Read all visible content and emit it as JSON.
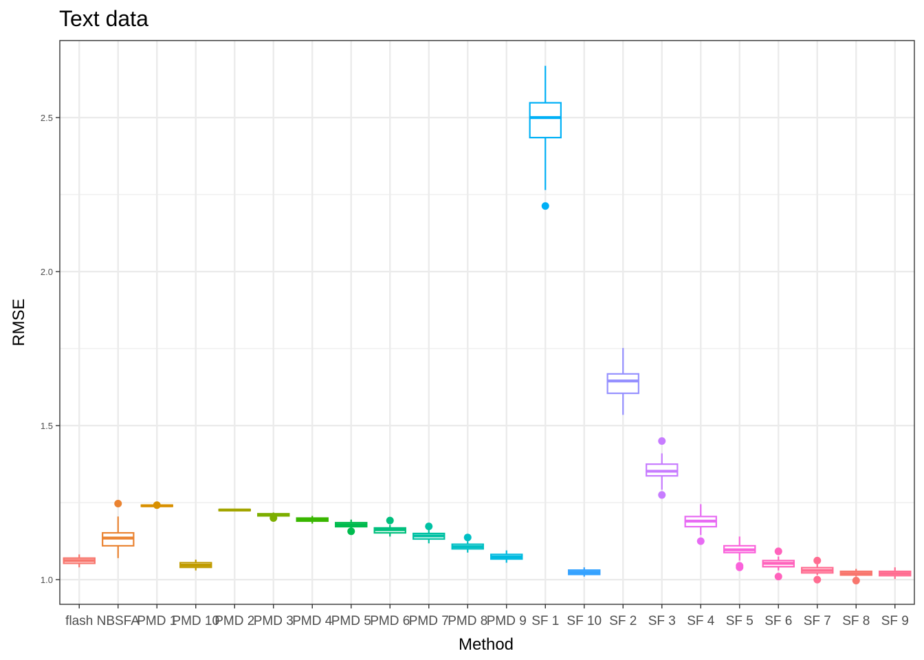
{
  "chart_data": {
    "type": "boxplot",
    "title": "Text data",
    "xlabel": "Method",
    "ylabel": "RMSE",
    "ylim": [
      0.92,
      2.75
    ],
    "yticks": [
      1.0,
      1.5,
      2.0,
      2.5
    ],
    "ytick_labels": [
      "1.0",
      "1.5",
      "2.0",
      "2.5"
    ],
    "grid": true,
    "legend": "none",
    "categories": [
      "flash",
      "NBSFA",
      "PMD 1",
      "PMD 10",
      "PMD 2",
      "PMD 3",
      "PMD 4",
      "PMD 5",
      "PMD 6",
      "PMD 7",
      "PMD 8",
      "PMD 9",
      "SF 1",
      "SF 10",
      "SF 2",
      "SF 3",
      "SF 4",
      "SF 5",
      "SF 6",
      "SF 7",
      "SF 8",
      "SF 9"
    ],
    "colors": [
      "#F8766D",
      "#EA8331",
      "#D89000",
      "#C09B00",
      "#A3A500",
      "#7CAE00",
      "#39B600",
      "#00BB4E",
      "#00BF7D",
      "#00C1A3",
      "#00BFC4",
      "#00BAE0",
      "#00B0F6",
      "#35A2FF",
      "#9590FF",
      "#C77CFF",
      "#E76BF3",
      "#FA62DB",
      "#FF62BC",
      "#FF6C91",
      "#F8766D",
      "#FF6C91"
    ],
    "boxes": [
      {
        "min": 1.04,
        "q1": 1.053,
        "median": 1.062,
        "q3": 1.07,
        "max": 1.082,
        "outliers": []
      },
      {
        "min": 1.07,
        "q1": 1.11,
        "median": 1.135,
        "q3": 1.152,
        "max": 1.205,
        "outliers": [
          1.247
        ]
      },
      {
        "min": 1.236,
        "q1": 1.238,
        "median": 1.24,
        "q3": 1.242,
        "max": 1.244,
        "outliers": [
          1.242
        ]
      },
      {
        "min": 1.03,
        "q1": 1.04,
        "median": 1.047,
        "q3": 1.055,
        "max": 1.065,
        "outliers": []
      },
      {
        "min": 1.222,
        "q1": 1.224,
        "median": 1.226,
        "q3": 1.228,
        "max": 1.23,
        "outliers": []
      },
      {
        "min": 1.205,
        "q1": 1.207,
        "median": 1.21,
        "q3": 1.214,
        "max": 1.218,
        "outliers": [
          1.2
        ]
      },
      {
        "min": 1.182,
        "q1": 1.19,
        "median": 1.195,
        "q3": 1.2,
        "max": 1.207,
        "outliers": []
      },
      {
        "min": 1.165,
        "q1": 1.172,
        "median": 1.178,
        "q3": 1.185,
        "max": 1.195,
        "outliers": [
          1.157
        ]
      },
      {
        "min": 1.14,
        "q1": 1.152,
        "median": 1.162,
        "q3": 1.168,
        "max": 1.178,
        "outliers": [
          1.192
        ]
      },
      {
        "min": 1.118,
        "q1": 1.132,
        "median": 1.142,
        "q3": 1.15,
        "max": 1.162,
        "outliers": [
          1.173
        ]
      },
      {
        "min": 1.088,
        "q1": 1.1,
        "median": 1.107,
        "q3": 1.115,
        "max": 1.125,
        "outliers": [
          1.137
        ]
      },
      {
        "min": 1.055,
        "q1": 1.067,
        "median": 1.074,
        "q3": 1.082,
        "max": 1.095,
        "outliers": []
      },
      {
        "min": 2.265,
        "q1": 2.435,
        "median": 2.5,
        "q3": 2.548,
        "max": 2.668,
        "outliers": [
          2.213
        ]
      },
      {
        "min": 1.01,
        "q1": 1.017,
        "median": 1.024,
        "q3": 1.031,
        "max": 1.04,
        "outliers": []
      },
      {
        "min": 1.535,
        "q1": 1.605,
        "median": 1.645,
        "q3": 1.668,
        "max": 1.752,
        "outliers": []
      },
      {
        "min": 1.292,
        "q1": 1.337,
        "median": 1.352,
        "q3": 1.375,
        "max": 1.41,
        "outliers": [
          1.45,
          1.275
        ]
      },
      {
        "min": 1.145,
        "q1": 1.172,
        "median": 1.19,
        "q3": 1.205,
        "max": 1.245,
        "outliers": [
          1.125
        ]
      },
      {
        "min": 1.062,
        "q1": 1.088,
        "median": 1.097,
        "q3": 1.11,
        "max": 1.14,
        "outliers": [
          1.045,
          1.04
        ]
      },
      {
        "min": 1.03,
        "q1": 1.042,
        "median": 1.053,
        "q3": 1.062,
        "max": 1.075,
        "outliers": [
          1.092,
          1.01
        ]
      },
      {
        "min": 1.015,
        "q1": 1.022,
        "median": 1.03,
        "q3": 1.039,
        "max": 1.05,
        "outliers": [
          1.062,
          1.0
        ]
      },
      {
        "min": 1.01,
        "q1": 1.015,
        "median": 1.02,
        "q3": 1.027,
        "max": 1.035,
        "outliers": [
          0.997
        ]
      },
      {
        "min": 1.002,
        "q1": 1.013,
        "median": 1.02,
        "q3": 1.027,
        "max": 1.04,
        "outliers": []
      }
    ]
  }
}
